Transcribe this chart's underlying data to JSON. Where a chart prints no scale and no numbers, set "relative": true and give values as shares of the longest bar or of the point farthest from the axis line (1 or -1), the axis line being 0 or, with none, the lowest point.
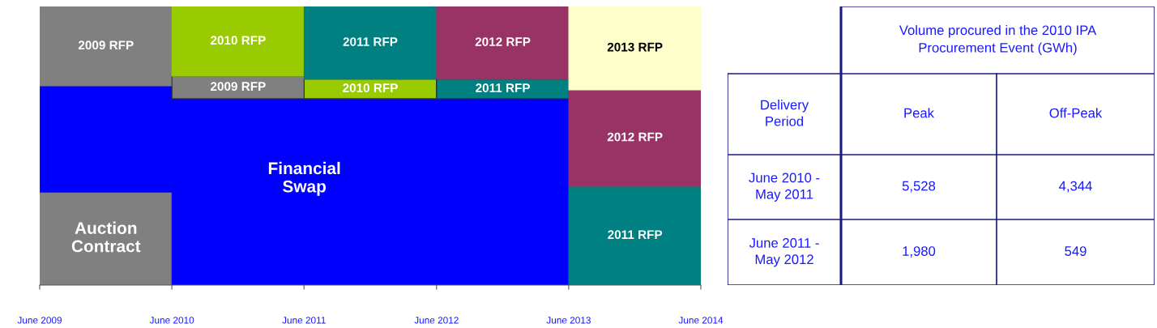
{
  "chart_data": [
    {
      "type": "bar",
      "stacked": true,
      "relative": true,
      "x": [
        "2009-12-01",
        "2010-12-01",
        "2011-12-01",
        "2012-12-01",
        "2013-12-01"
      ],
      "xlim": [
        "2009-06-01",
        "2014-06-01"
      ],
      "xticks": [
        {
          "value": "2009-06-01",
          "label": "June 2009"
        },
        {
          "value": "2010-06-01",
          "label": "June 2010"
        },
        {
          "value": "2011-06-01",
          "label": "June 2011"
        },
        {
          "value": "2012-06-01",
          "label": "June 2012"
        },
        {
          "value": "2013-06-01",
          "label": "June 2013"
        },
        {
          "value": "2014-06-01",
          "label": "June 2014"
        }
      ],
      "series": [
        {
          "name": "Auction\nContract",
          "color": "#808080",
          "values": [
            0.334,
            null,
            null,
            null,
            null
          ]
        },
        {
          "name": "Financial\nSwap",
          "color": "#0000ff",
          "values": [
            0.381,
            0.669,
            0.669,
            0.669,
            null
          ]
        },
        {
          "name": "2009 RFP",
          "color": "#808080",
          "values": [
            0.285,
            0.081,
            null,
            null,
            null
          ]
        },
        {
          "name": "2010 RFP",
          "color": "#99cc00",
          "values": [
            null,
            0.25,
            0.07,
            null,
            null
          ]
        },
        {
          "name": "2011 RFP",
          "color": "#008080",
          "values": [
            null,
            null,
            0.261,
            0.07,
            0.355
          ]
        },
        {
          "name": "2012 RFP",
          "color": "#993366",
          "values": [
            null,
            null,
            null,
            0.261,
            0.346
          ]
        },
        {
          "name": "2013 RFP",
          "color": "#ffffcc",
          "values": [
            null,
            null,
            null,
            null,
            0.299
          ]
        }
      ]
    },
    {
      "type": "other",
      "title": "Volume procured in the 2010 IPA Procurement Event (GWh)",
      "categories": [
        "Peak",
        "Off-Peak"
      ],
      "y_categories": [
        "June 2010 -\nMay 2011",
        "June 2011 -\nMay 2012"
      ],
      "cell_labels": [
        [
          "5,528",
          "4,344"
        ],
        [
          "1,980",
          "549"
        ]
      ],
      "annotations": [
        "Delivery\nPeriod"
      ]
    }
  ]
}
